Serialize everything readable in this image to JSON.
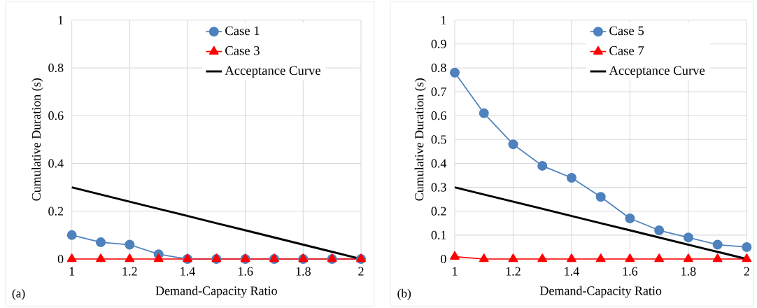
{
  "chart_data": [
    {
      "type": "line",
      "xlabel": "Demand-Capacity Ratio",
      "ylabel": "Cumulative Duration (s)",
      "annotations": [
        "(a)"
      ],
      "x": [
        1,
        1.1,
        1.2,
        1.3,
        1.4,
        1.5,
        1.6,
        1.7,
        1.8,
        1.9,
        2
      ],
      "xlim": [
        1,
        2
      ],
      "xticks": [
        1,
        1.2,
        1.4,
        1.6,
        1.8,
        2
      ],
      "ylim": [
        0,
        1
      ],
      "yticks": [
        0,
        0.2,
        0.4,
        0.6,
        0.8,
        1
      ],
      "grid": true,
      "legend": "top right",
      "series": [
        {
          "name": "Case 1",
          "color": "#4f81bd",
          "marker": "circle",
          "values": [
            0.1,
            0.07,
            0.06,
            0.02,
            0,
            0,
            0,
            0,
            0,
            0,
            0
          ]
        },
        {
          "name": "Case 3",
          "color": "#ff0000",
          "marker": "triangle",
          "values": [
            0,
            0,
            0,
            0,
            0,
            0,
            0,
            0,
            0,
            0,
            0
          ]
        },
        {
          "name": "Acceptance Curve",
          "color": "#000000",
          "marker": "none",
          "values": [
            0.3,
            0.27,
            0.24,
            0.21,
            0.18,
            0.15,
            0.12,
            0.09,
            0.06,
            0.03,
            0
          ]
        }
      ]
    },
    {
      "type": "line",
      "xlabel": "Demand-Capacity Ratio",
      "ylabel": "Cumulative Duration (s)",
      "annotations": [
        "(b)"
      ],
      "x": [
        1,
        1.1,
        1.2,
        1.3,
        1.4,
        1.5,
        1.6,
        1.7,
        1.8,
        1.9,
        2
      ],
      "xlim": [
        1,
        2
      ],
      "xticks": [
        1,
        1.2,
        1.4,
        1.6,
        1.8,
        2
      ],
      "ylim": [
        0,
        1
      ],
      "yticks": [
        0,
        0.1,
        0.2,
        0.3,
        0.4,
        0.5,
        0.6,
        0.7,
        0.8,
        0.9,
        1
      ],
      "grid": true,
      "legend": "top right",
      "series": [
        {
          "name": "Case 5",
          "color": "#4f81bd",
          "marker": "circle",
          "values": [
            0.78,
            0.61,
            0.48,
            0.39,
            0.34,
            0.26,
            0.17,
            0.12,
            0.09,
            0.06,
            0.05
          ]
        },
        {
          "name": "Case 7",
          "color": "#ff0000",
          "marker": "triangle",
          "values": [
            0.01,
            0,
            0,
            0,
            0,
            0,
            0,
            0,
            0,
            0,
            0
          ]
        },
        {
          "name": "Acceptance Curve",
          "color": "#000000",
          "marker": "none",
          "values": [
            0.3,
            0.27,
            0.24,
            0.21,
            0.18,
            0.15,
            0.12,
            0.09,
            0.06,
            0.03,
            0
          ]
        }
      ]
    }
  ]
}
